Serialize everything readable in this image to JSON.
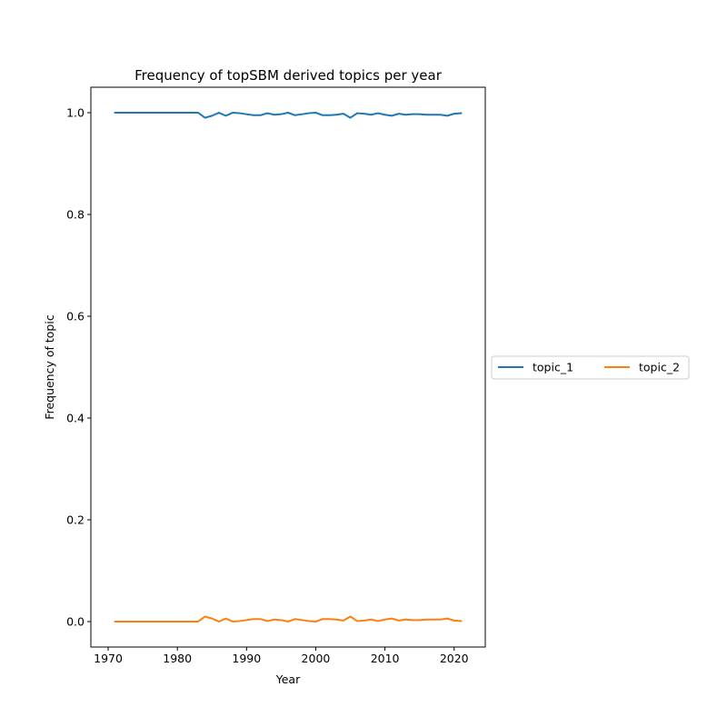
{
  "colors": {
    "topic_1": "#1f77b4",
    "topic_2": "#ff7f0e",
    "axes": "#000000",
    "legend_border": "#cccccc"
  },
  "chart_data": {
    "type": "line",
    "title": "Frequency of topSBM derived topics per year",
    "xlabel": "Year",
    "ylabel": "Frequency of topic",
    "xlim": [
      1967.5,
      2024.5
    ],
    "ylim": [
      -0.05,
      1.05
    ],
    "xticks": [
      1970,
      1980,
      1990,
      2000,
      2010,
      2020
    ],
    "yticks": [
      0.0,
      0.2,
      0.4,
      0.6,
      0.8,
      1.0
    ],
    "ytick_labels": [
      "0.0",
      "0.2",
      "0.4",
      "0.6",
      "0.8",
      "1.0"
    ],
    "grid": false,
    "legend_position": "outside-right",
    "x": [
      1971,
      1972,
      1973,
      1974,
      1975,
      1976,
      1977,
      1978,
      1979,
      1980,
      1981,
      1982,
      1983,
      1984,
      1985,
      1986,
      1987,
      1988,
      1989,
      1990,
      1991,
      1992,
      1993,
      1994,
      1995,
      1996,
      1997,
      1998,
      1999,
      2000,
      2001,
      2002,
      2003,
      2004,
      2005,
      2006,
      2007,
      2008,
      2009,
      2010,
      2011,
      2012,
      2013,
      2014,
      2015,
      2016,
      2017,
      2018,
      2019,
      2020,
      2021
    ],
    "series": [
      {
        "name": "topic_1",
        "values": [
          1.0,
          1.0,
          1.0,
          1.0,
          1.0,
          1.0,
          1.0,
          1.0,
          1.0,
          1.0,
          1.0,
          1.0,
          1.0,
          0.99,
          0.994,
          1.0,
          0.994,
          1.0,
          0.999,
          0.997,
          0.995,
          0.995,
          0.999,
          0.996,
          0.997,
          1.0,
          0.995,
          0.997,
          0.999,
          1.0,
          0.995,
          0.995,
          0.996,
          0.998,
          0.99,
          0.999,
          0.998,
          0.996,
          0.999,
          0.996,
          0.994,
          0.998,
          0.996,
          0.997,
          0.997,
          0.996,
          0.996,
          0.996,
          0.994,
          0.998,
          0.999
        ]
      },
      {
        "name": "topic_2",
        "values": [
          0.0,
          0.0,
          0.0,
          0.0,
          0.0,
          0.0,
          0.0,
          0.0,
          0.0,
          0.0,
          0.0,
          0.0,
          0.0,
          0.01,
          0.006,
          0.0,
          0.006,
          0.0,
          0.001,
          0.003,
          0.005,
          0.005,
          0.001,
          0.004,
          0.003,
          0.0,
          0.005,
          0.003,
          0.001,
          0.0,
          0.005,
          0.005,
          0.004,
          0.002,
          0.01,
          0.001,
          0.002,
          0.004,
          0.001,
          0.004,
          0.006,
          0.002,
          0.004,
          0.003,
          0.003,
          0.004,
          0.004,
          0.004,
          0.006,
          0.002,
          0.001
        ]
      }
    ]
  }
}
